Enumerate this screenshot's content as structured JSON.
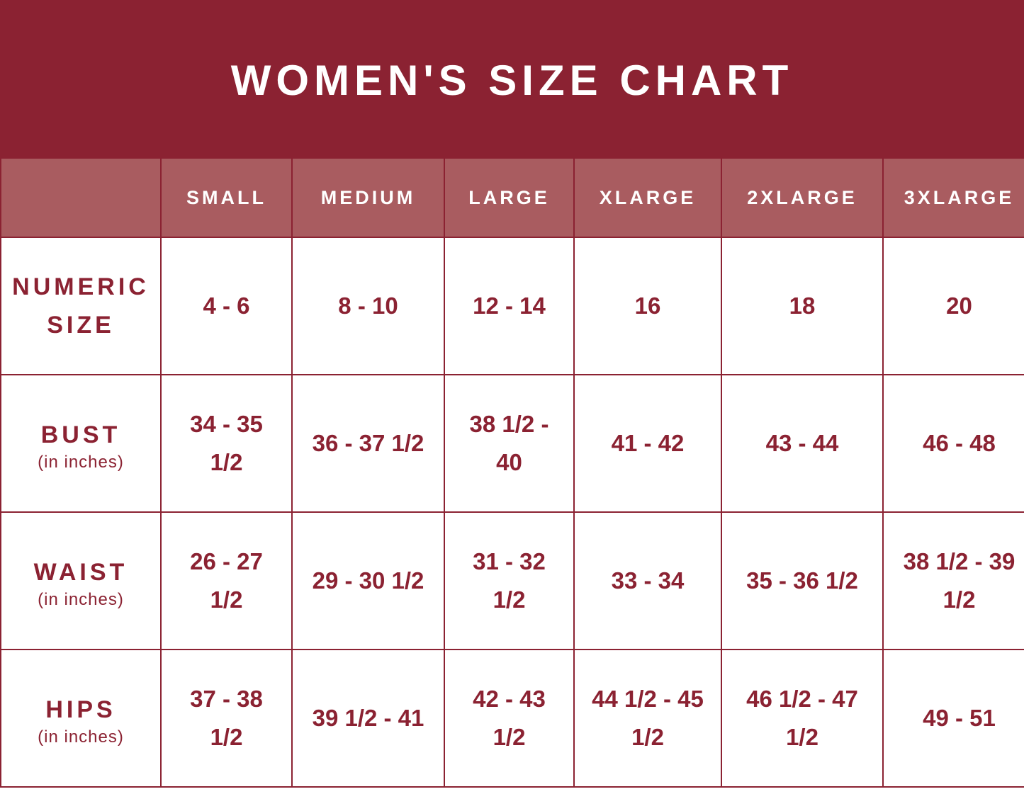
{
  "header": {
    "title": "WOMEN'S SIZE CHART"
  },
  "table": {
    "columns": [
      "SMALL",
      "MEDIUM",
      "LARGE",
      "XLARGE",
      "2XLARGE",
      "3XLARGE"
    ],
    "rows": [
      {
        "label": "NUMERIC SIZE",
        "values": [
          "4 - 6",
          "8 - 10",
          "12 - 14",
          "16",
          "18",
          "20"
        ]
      },
      {
        "label": "BUST",
        "sublabel": "(in inches)",
        "values": [
          "34 - 35 1/2",
          "36 - 37 1/2",
          "38 1/2 - 40",
          "41 - 42",
          "43 - 44",
          "46 - 48"
        ]
      },
      {
        "label": "WAIST",
        "sublabel": "(in inches)",
        "values": [
          "26 - 27 1/2",
          "29 - 30 1/2",
          "31 - 32 1/2",
          "33 - 34",
          "35 - 36 1/2",
          "38 1/2 - 39 1/2"
        ]
      },
      {
        "label": "HIPS",
        "sublabel": "(in inches)",
        "values": [
          "37 - 38 1/2",
          "39 1/2 - 41",
          "42 - 43 1/2",
          "44 1/2 - 45 1/2",
          "46 1/2 - 47 1/2",
          "49 - 51"
        ]
      }
    ]
  }
}
